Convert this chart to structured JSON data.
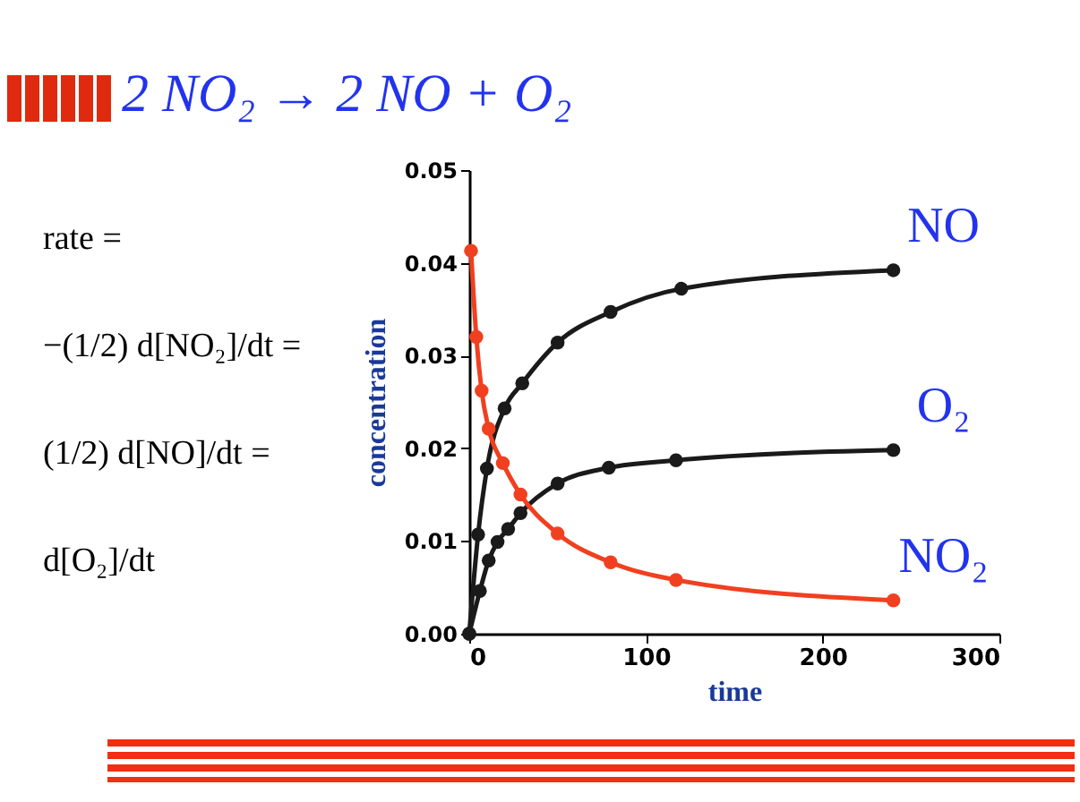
{
  "chart_data": {
    "type": "line",
    "title": "2 NO₂ → 2 NO + O₂",
    "xlabel": "time",
    "ylabel": "concentration",
    "annotations": [
      "rate =",
      "−(1/2) d[NO₂]/dt =",
      "(1/2) d[NO]/dt =",
      "d[O₂]/dt"
    ],
    "series": [
      {
        "name": "NO",
        "color": "#1a1a1a",
        "x": [
          0,
          5,
          10,
          20,
          30,
          50,
          80,
          120,
          240
        ],
        "values": [
          0,
          0.0107,
          0.0178,
          0.0243,
          0.027,
          0.0314,
          0.0347,
          0.0372,
          0.0392
        ]
      },
      {
        "name": "O₂",
        "color": "#1a1a1a",
        "x": [
          0,
          6,
          11,
          16,
          22,
          29,
          50,
          79,
          117,
          240
        ],
        "values": [
          0,
          0.0046,
          0.0079,
          0.0099,
          0.0113,
          0.013,
          0.0162,
          0.0179,
          0.0187,
          0.0198
        ]
      },
      {
        "name": "NO₂",
        "color": "#f04020",
        "x": [
          1,
          4,
          7,
          11,
          19,
          29,
          50,
          80,
          117,
          240
        ],
        "values": [
          0.0413,
          0.032,
          0.0262,
          0.0221,
          0.0184,
          0.015,
          0.0108,
          0.0077,
          0.0058,
          0.0036
        ]
      }
    ],
    "xlim": [
      0,
      300
    ],
    "xticks": [
      0,
      100,
      200,
      300
    ],
    "ylim": [
      0,
      0.05
    ],
    "yticks": [
      {
        "value": 0,
        "label": "0.00"
      },
      {
        "value": 0.01,
        "label": "0.01"
      },
      {
        "value": 0.02,
        "label": "0.02"
      },
      {
        "value": 0.03,
        "label": "0.03"
      },
      {
        "value": 0.04,
        "label": "0.04"
      },
      {
        "value": 0.05,
        "label": "0.05"
      }
    ],
    "grid": false,
    "legend": false,
    "marker": "circle",
    "line_style": "solid"
  }
}
